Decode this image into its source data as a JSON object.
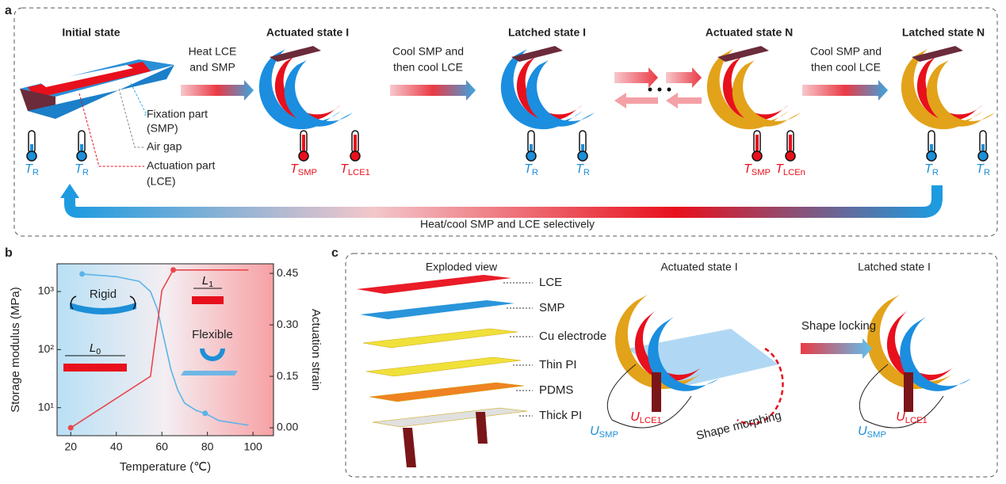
{
  "panel_a": {
    "label": "a",
    "states": [
      "Initial state",
      "Actuated state I",
      "Latched state I",
      "Actuated state N",
      "Latched state N"
    ],
    "arrows": [
      [
        "Heat LCE",
        "and SMP"
      ],
      [
        "Cool SMP and",
        "then cool LCE"
      ],
      [
        "Cool SMP and",
        "then cool LCE"
      ]
    ],
    "annotations": [
      [
        "Fixation part",
        "(SMP)"
      ],
      [
        "Air gap"
      ],
      [
        "Actuation part",
        "(LCE)"
      ]
    ],
    "thermometers": [
      {
        "main": "T",
        "sub": "R"
      },
      {
        "main": "T",
        "sub": "R"
      },
      {
        "main": "T",
        "sub": "SMP"
      },
      {
        "main": "T",
        "sub": "LCE1"
      },
      {
        "main": "T",
        "sub": "R"
      },
      {
        "main": "T",
        "sub": "R"
      },
      {
        "main": "T",
        "sub": "SMP"
      },
      {
        "main": "T",
        "sub": "LCEn"
      },
      {
        "main": "T",
        "sub": "R"
      },
      {
        "main": "T",
        "sub": "R"
      }
    ],
    "loop_label": "Heat/cool SMP and LCE selectively"
  },
  "panel_b": {
    "label": "b",
    "annotations": {
      "rigid": "Rigid",
      "flexible": "Flexible",
      "l0": {
        "main": "L",
        "sub": "0"
      },
      "l1": {
        "main": "L",
        "sub": "1"
      }
    }
  },
  "chart_data": {
    "type": "line",
    "xlabel": "Temperature (℃)",
    "ylabel": "Storage modulus (MPa)",
    "y2label": "Actuation strain",
    "xlim": [
      14,
      109
    ],
    "xticks": [
      20,
      40,
      60,
      80,
      100
    ],
    "ylim": [
      3.3,
      3000
    ],
    "log_y": true,
    "yticks": [
      {
        "value": 10,
        "label": "10¹"
      },
      {
        "value": 100,
        "label": "10²"
      },
      {
        "value": 1000,
        "label": "10³"
      }
    ],
    "y2lim": [
      -0.023,
      0.478
    ],
    "y2ticks": [
      {
        "value": 0,
        "label": "0.00"
      },
      {
        "value": 0.15,
        "label": "0.15"
      },
      {
        "value": 0.3,
        "label": "0.30"
      },
      {
        "value": 0.45,
        "label": "0.45"
      }
    ],
    "series": [
      {
        "type": "line",
        "color": "#5ab4e8",
        "x": [
          25,
          40,
          50,
          55,
          58,
          61,
          64,
          67,
          70,
          75,
          79,
          85,
          98
        ],
        "values": [
          2000,
          1800,
          1500,
          1000,
          500,
          150,
          45,
          20,
          12,
          9,
          8,
          6,
          5
        ]
      },
      {
        "type": "scatter",
        "color": "#5ab4e8",
        "x": [
          25,
          79
        ],
        "values": [
          2000,
          8
        ]
      },
      {
        "type": "line",
        "color": "#e8474c",
        "axis": "y2",
        "x": [
          20,
          55,
          60,
          65,
          98
        ],
        "values": [
          0,
          0.15,
          0.4,
          0.46,
          0.46
        ]
      },
      {
        "type": "scatter",
        "color": "#e8474c",
        "axis": "y2",
        "x": [
          20,
          65
        ],
        "values": [
          0,
          0.46
        ]
      }
    ]
  },
  "panel_c": {
    "label": "c",
    "titles": [
      "Exploded view",
      "Actuated state I",
      "Latched state I"
    ],
    "layers": [
      "LCE",
      "SMP",
      "Cu electrode",
      "Thin PI",
      "PDMS",
      "Thick PI"
    ],
    "morph_label": "Shape morphing",
    "lock_label": "Shape locking",
    "voltages": [
      {
        "main": "U",
        "sub": "SMP"
      },
      {
        "main": "U",
        "sub": "LCE1"
      },
      {
        "main": "U",
        "sub": "SMP"
      },
      {
        "main": "U",
        "sub": "LCE1"
      }
    ]
  }
}
